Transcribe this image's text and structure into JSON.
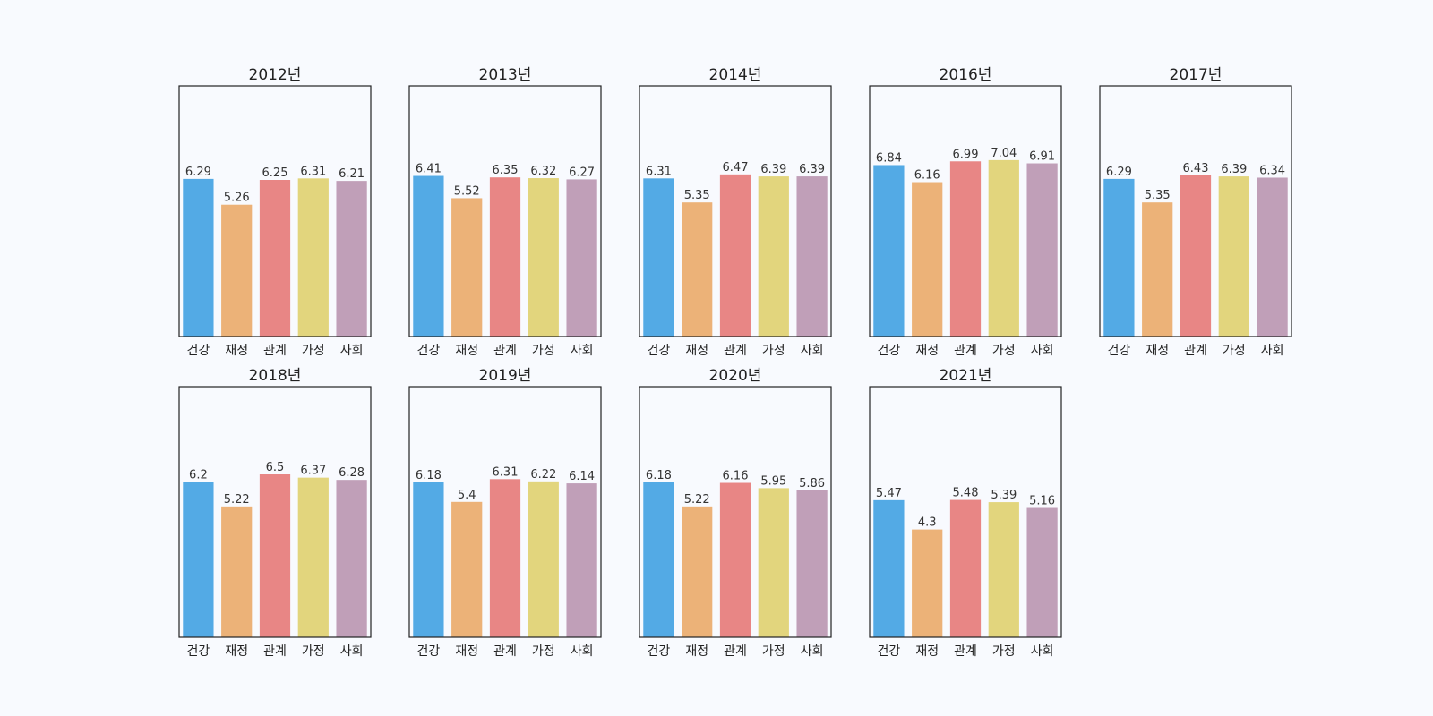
{
  "chart_data": {
    "type": "bar",
    "categories": [
      "건강",
      "재정",
      "관계",
      "가정",
      "사회"
    ],
    "colors": [
      "#53aae5",
      "#ecb278",
      "#e88685",
      "#e2d57d",
      "#c09fb8"
    ],
    "ylim": [
      0,
      10
    ],
    "grid": false,
    "panels": [
      {
        "title": "2012년",
        "values": [
          6.29,
          5.26,
          6.25,
          6.31,
          6.21
        ]
      },
      {
        "title": "2013년",
        "values": [
          6.41,
          5.52,
          6.35,
          6.32,
          6.27
        ]
      },
      {
        "title": "2014년",
        "values": [
          6.31,
          5.35,
          6.47,
          6.39,
          6.39
        ]
      },
      {
        "title": "2016년",
        "values": [
          6.84,
          6.16,
          6.99,
          7.04,
          6.91
        ]
      },
      {
        "title": "2017년",
        "values": [
          6.29,
          5.35,
          6.43,
          6.39,
          6.34
        ]
      },
      {
        "title": "2018년",
        "values": [
          6.2,
          5.22,
          6.5,
          6.37,
          6.28
        ]
      },
      {
        "title": "2019년",
        "values": [
          6.18,
          5.4,
          6.31,
          6.22,
          6.14
        ]
      },
      {
        "title": "2020년",
        "values": [
          6.18,
          5.22,
          6.16,
          5.95,
          5.86
        ]
      },
      {
        "title": "2021년",
        "values": [
          5.47,
          4.3,
          5.48,
          5.39,
          5.16
        ]
      }
    ]
  }
}
